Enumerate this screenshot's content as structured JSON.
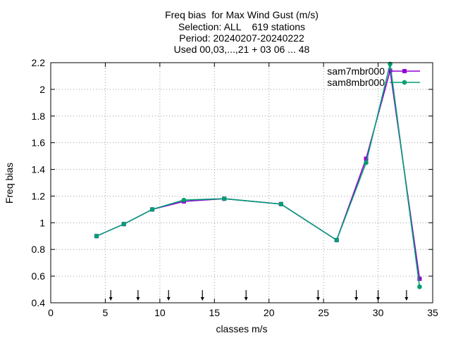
{
  "chart_data": {
    "type": "line",
    "title_lines": [
      "Freq bias  for Max Wind Gust (m/s)",
      "Selection: ALL    619 stations",
      "Period: 20240207-20240222",
      "Used 00,03,...,21 + 03 06 ... 48"
    ],
    "xlabel": "classes m/s",
    "ylabel": "Freq bias",
    "xlim": [
      0,
      35
    ],
    "ylim": [
      0.4,
      2.2
    ],
    "xticks": [
      0,
      5,
      10,
      15,
      20,
      25,
      30,
      35
    ],
    "yticks": [
      0.4,
      0.6,
      0.8,
      1,
      1.2,
      1.4,
      1.6,
      1.8,
      2,
      2.2
    ],
    "ytick_labels": [
      "0.4",
      "0.6",
      "0.8",
      "1",
      "1.2",
      "1.4",
      "1.6",
      "1.8",
      "2",
      "2.2"
    ],
    "grid": true,
    "legend_position": "top-right",
    "class_limits": [
      5.5,
      8,
      10.8,
      13.9,
      17.9,
      24.5,
      28,
      30,
      32.6
    ],
    "series": [
      {
        "name": "sam7mbr000",
        "color": "#9400d3",
        "x": [
          4.2,
          6.7,
          9.3,
          12.2,
          15.9,
          21.1,
          26.2,
          28.9,
          31.1,
          33.8
        ],
        "y": [
          0.9,
          0.99,
          1.1,
          1.16,
          1.18,
          1.14,
          0.87,
          1.48,
          2.14,
          0.58
        ]
      },
      {
        "name": "sam8mbr000",
        "color": "#009e73",
        "x": [
          4.2,
          6.7,
          9.3,
          12.2,
          15.9,
          21.1,
          26.2,
          28.9,
          31.1,
          33.8
        ],
        "y": [
          0.9,
          0.99,
          1.1,
          1.17,
          1.18,
          1.14,
          0.87,
          1.45,
          2.19,
          0.52
        ]
      }
    ]
  }
}
